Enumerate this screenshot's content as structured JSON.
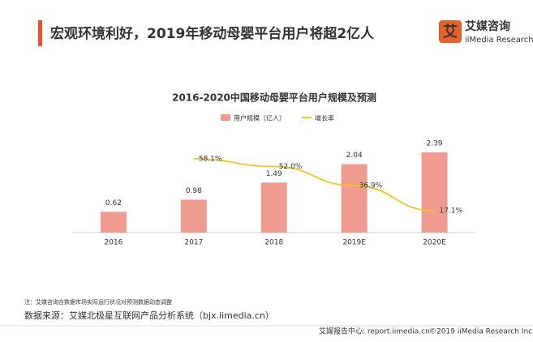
{
  "header": {
    "title": "宏观环境利好，2019年移动母婴平台用户将超2亿人",
    "logo_cn": "艾媒咨询",
    "logo_en": "iiMedia Research"
  },
  "chart_data": {
    "type": "bar_line",
    "title": "2016-2020中国移动母婴平台用户规模及预测",
    "categories": [
      "2016",
      "2017",
      "2018",
      "2019E",
      "2020E"
    ],
    "series": [
      {
        "name": "用户规模（亿人）",
        "color": "#ef9b90",
        "values": [
          0.62,
          0.98,
          1.49,
          2.04,
          2.39
        ]
      },
      {
        "name": "增长率",
        "color": "#f5c324",
        "axis": "y2",
        "values": [
          null,
          58.1,
          52.0,
          36.9,
          17.1
        ],
        "value_labels": [
          null,
          "58.1%",
          "52.0%",
          "36.9%",
          "17.1%"
        ]
      }
    ],
    "ylim": [
      0,
      2.5
    ],
    "y2lim": [
      0,
      66
    ]
  },
  "footer": {
    "note": "注：艾媒咨询合数据市场实际运行状况对预测数据动态调整",
    "source": "数据来源：艾媒北极星互联网产品分析系统（bjx.iimedia.cn）",
    "report": "艾媒报告中心: report.iimedia.cn",
    "copyright": "©2019  iiMedia Research  Inc"
  }
}
